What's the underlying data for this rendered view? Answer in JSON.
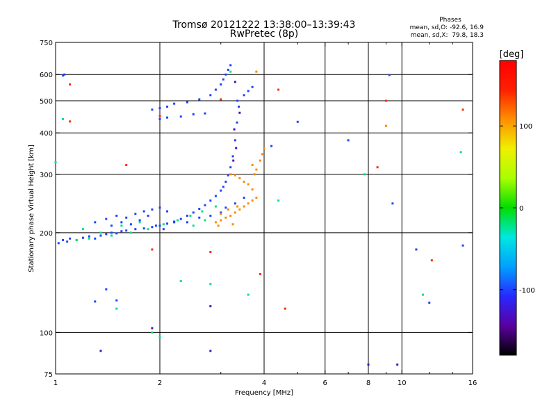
{
  "chart_data": {
    "type": "scatter",
    "title": "Tromsø 20121222 13:38:00–13:39:43",
    "subtitle": "RwPretec (8p)",
    "xlabel": "Frequency [MHz]",
    "ylabel": "Stationary phase Virtual Height [km]",
    "x_scale": "log",
    "y_scale": "log",
    "xlim": [
      1,
      16
    ],
    "ylim": [
      75,
      750
    ],
    "x_ticks": [
      "1",
      "2",
      "4",
      "6",
      "8",
      "10",
      "16"
    ],
    "y_ticks": [
      "75",
      "100",
      "200",
      "300",
      "400",
      "500",
      "600",
      "750"
    ],
    "x_grid": [
      2,
      4,
      6,
      8,
      10
    ],
    "y_grid": [
      100,
      200,
      300,
      400,
      500,
      600
    ],
    "grid": true,
    "stats": {
      "title": "Phases",
      "o_line": "mean, sd,O: -92.6, 16.9",
      "x_line": "mean, sd,X:  79.8, 18.3"
    },
    "colorbar": {
      "label": "[deg]",
      "range": [
        -180,
        180
      ],
      "ticks": [
        "100",
        "0",
        "-100"
      ],
      "tick_values": [
        100,
        0,
        -100
      ],
      "colors": [
        "#000000",
        "#5a00a0",
        "#2828ff",
        "#00a0ff",
        "#00e8e0",
        "#00dd00",
        "#a8ff00",
        "#f0f000",
        "#ff9000",
        "#ff2000",
        "#ff0000"
      ]
    },
    "series": [
      {
        "phase": -100,
        "points": [
          [
            1.02,
            186
          ],
          [
            1.05,
            190
          ],
          [
            1.08,
            188
          ],
          [
            1.1,
            192
          ],
          [
            1.15,
            190
          ],
          [
            1.2,
            193
          ],
          [
            1.25,
            195
          ],
          [
            1.3,
            192
          ],
          [
            1.35,
            196
          ],
          [
            1.4,
            198
          ],
          [
            1.45,
            200
          ],
          [
            1.5,
            199
          ],
          [
            1.55,
            202
          ],
          [
            1.6,
            203
          ],
          [
            1.7,
            205
          ],
          [
            1.8,
            206
          ],
          [
            1.9,
            208
          ],
          [
            2.0,
            210
          ],
          [
            2.1,
            213
          ],
          [
            2.2,
            216
          ],
          [
            2.3,
            220
          ],
          [
            2.4,
            225
          ],
          [
            2.5,
            230
          ],
          [
            2.6,
            236
          ],
          [
            2.7,
            242
          ],
          [
            2.8,
            250
          ],
          [
            2.9,
            258
          ],
          [
            3.0,
            268
          ],
          [
            3.05,
            275
          ],
          [
            3.1,
            285
          ],
          [
            3.15,
            298
          ],
          [
            3.2,
            315
          ],
          [
            3.25,
            340
          ],
          [
            3.3,
            380
          ],
          [
            3.34,
            430
          ],
          [
            3.38,
            480
          ],
          [
            1.3,
            215
          ],
          [
            1.4,
            220
          ],
          [
            1.5,
            225
          ],
          [
            1.6,
            222
          ],
          [
            1.7,
            228
          ],
          [
            1.8,
            232
          ],
          [
            1.9,
            235
          ],
          [
            2.0,
            238
          ],
          [
            1.45,
            210
          ],
          [
            1.55,
            215
          ],
          [
            1.65,
            212
          ],
          [
            1.75,
            218
          ],
          [
            1.85,
            225
          ],
          [
            2.1,
            232
          ],
          [
            1.95,
            210
          ],
          [
            2.05,
            205
          ],
          [
            2.2,
            215
          ],
          [
            2.4,
            215
          ],
          [
            2.6,
            222
          ],
          [
            2.8,
            225
          ],
          [
            3.0,
            230
          ],
          [
            3.1,
            238
          ],
          [
            1.9,
            470
          ],
          [
            2.0,
            475
          ],
          [
            2.1,
            480
          ],
          [
            2.2,
            490
          ],
          [
            2.4,
            495
          ],
          [
            2.6,
            505
          ],
          [
            2.8,
            520
          ],
          [
            2.9,
            540
          ],
          [
            3.0,
            560
          ],
          [
            3.05,
            580
          ],
          [
            3.1,
            600
          ],
          [
            3.15,
            620
          ],
          [
            3.2,
            640
          ],
          [
            2.0,
            440
          ],
          [
            2.1,
            445
          ],
          [
            2.3,
            448
          ],
          [
            2.5,
            455
          ],
          [
            2.7,
            458
          ],
          [
            3.35,
            500
          ],
          [
            3.5,
            520
          ],
          [
            3.6,
            535
          ],
          [
            3.7,
            550
          ],
          [
            1.4,
            135
          ],
          [
            1.3,
            124
          ],
          [
            1.5,
            125
          ],
          [
            1.05,
            596
          ],
          [
            1.06,
            600
          ],
          [
            9.2,
            598
          ],
          [
            9.4,
            245
          ],
          [
            15.0,
            183
          ],
          [
            11.0,
            178
          ],
          [
            12.0,
            123
          ],
          [
            7.0,
            380
          ],
          [
            5.0,
            432
          ],
          [
            4.2,
            365
          ],
          [
            3.3,
            245
          ],
          [
            3.5,
            255
          ]
        ]
      },
      {
        "phase": -20,
        "points": [
          [
            1.15,
            190
          ],
          [
            1.25,
            192
          ],
          [
            1.45,
            196
          ],
          [
            1.65,
            200
          ],
          [
            1.85,
            205
          ],
          [
            2.05,
            212
          ],
          [
            2.25,
            218
          ],
          [
            2.45,
            225
          ],
          [
            2.65,
            232
          ],
          [
            2.9,
            240
          ],
          [
            1.2,
            205
          ],
          [
            1.35,
            200
          ],
          [
            1.55,
            210
          ],
          [
            1.75,
            215
          ],
          [
            2.5,
            210
          ],
          [
            2.7,
            218
          ],
          [
            1.9,
            100
          ],
          [
            2.0,
            97
          ],
          [
            2.3,
            143
          ],
          [
            2.8,
            140
          ],
          [
            3.6,
            130
          ],
          [
            4.4,
            250
          ],
          [
            1.0,
            326
          ],
          [
            1.05,
            440
          ],
          [
            1.5,
            118
          ],
          [
            11.5,
            130
          ],
          [
            14.8,
            350
          ],
          [
            7.8,
            300
          ],
          [
            3.2,
            612
          ]
        ]
      },
      {
        "phase": 110,
        "points": [
          [
            2.9,
            215
          ],
          [
            3.0,
            218
          ],
          [
            3.1,
            222
          ],
          [
            3.2,
            225
          ],
          [
            3.3,
            230
          ],
          [
            3.4,
            235
          ],
          [
            3.5,
            240
          ],
          [
            3.6,
            245
          ],
          [
            3.7,
            250
          ],
          [
            3.8,
            255
          ],
          [
            3.7,
            270
          ],
          [
            3.6,
            280
          ],
          [
            3.5,
            285
          ],
          [
            3.4,
            292
          ],
          [
            3.3,
            298
          ],
          [
            3.2,
            300
          ],
          [
            3.75,
            300
          ],
          [
            3.8,
            310
          ],
          [
            3.9,
            330
          ],
          [
            3.95,
            345
          ],
          [
            4.0,
            360
          ],
          [
            3.0,
            228
          ],
          [
            3.15,
            235
          ],
          [
            3.35,
            240
          ],
          [
            2.95,
            210
          ],
          [
            3.25,
            212
          ],
          [
            3.8,
            612
          ],
          [
            9.0,
            420
          ],
          [
            3.7,
            320
          ]
        ]
      },
      {
        "phase": 140,
        "points": [
          [
            1.1,
            560
          ],
          [
            1.1,
            433
          ],
          [
            1.6,
            320
          ],
          [
            1.9,
            178
          ],
          [
            2.0,
            450
          ],
          [
            2.8,
            175
          ],
          [
            3.9,
            150
          ],
          [
            4.4,
            540
          ],
          [
            4.6,
            118
          ],
          [
            8.0,
            80
          ],
          [
            8.5,
            315
          ],
          [
            9.0,
            500
          ],
          [
            12.2,
            165
          ],
          [
            15.0,
            470
          ],
          [
            3.0,
            505
          ]
        ]
      },
      {
        "phase": -130,
        "points": [
          [
            1.35,
            88
          ],
          [
            1.9,
            103
          ],
          [
            2.8,
            88
          ],
          [
            2.8,
            120
          ],
          [
            8.0,
            80
          ],
          [
            9.7,
            80
          ],
          [
            3.3,
            570
          ],
          [
            3.4,
            460
          ],
          [
            3.28,
            410
          ],
          [
            3.32,
            360
          ],
          [
            3.26,
            330
          ]
        ]
      }
    ]
  }
}
